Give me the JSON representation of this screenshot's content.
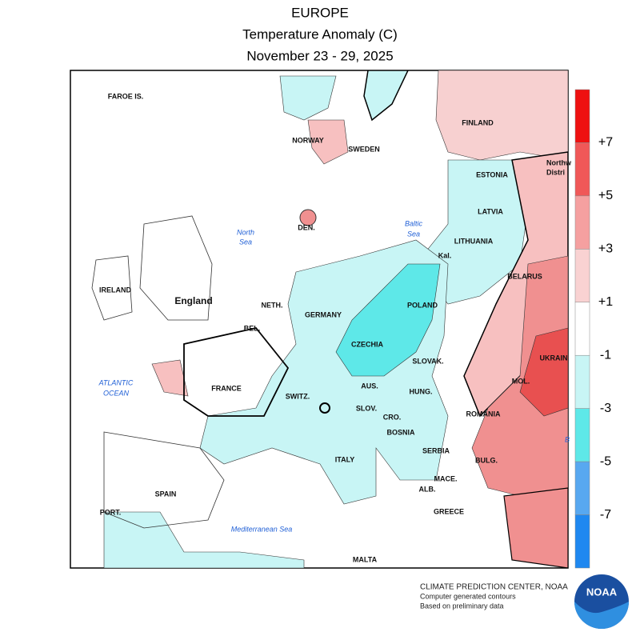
{
  "header": {
    "title": [
      "EUROPE",
      "Temperature Anomaly (C)",
      "November 23 - 29, 2025"
    ]
  },
  "map": {
    "labels": [
      "FAROE IS.",
      "NORWAY",
      "SWEDEN",
      "FINLAND",
      "ESTONIA",
      "Northw",
      "Distri",
      "LATVIA",
      "LITHUANIA",
      "Kal.",
      "BELARUS",
      "DEN.",
      "IRELAND",
      "England",
      "NETH.",
      "GERMANY",
      "POLAND",
      "BEL.",
      "CZECHIA",
      "SLOVAK.",
      "UKRAIN",
      "MOL.",
      "FRANCE",
      "SWITZ.",
      "AUS.",
      "HUNG.",
      "ROMANIA",
      "SLOV.",
      "CRO.",
      "BOSNIA",
      "SERBIA",
      "BULG.",
      "ITALY",
      "MACE.",
      "ALB.",
      "PORT.",
      "SPAIN",
      "GREECE",
      "MALTA"
    ],
    "water_labels": [
      "North",
      "Sea",
      "Baltic",
      "Sea",
      "ATLANTIC",
      "OCEAN",
      "Mediterranean Sea",
      "B"
    ]
  },
  "legend": {
    "colors": [
      "#ee1111",
      "#f05858",
      "#f5a0a0",
      "#f9d2d2",
      "#ffffff",
      "#c8f5f5",
      "#5ee8e8",
      "#58a8f0",
      "#1f88f0"
    ],
    "labels": [
      "+7",
      "+5",
      "+3",
      "+1",
      "-1",
      "-3",
      "-5",
      "-7"
    ]
  },
  "footer": [
    "CLIMATE PREDICTION CENTER, NOAA",
    "Computer generated contours",
    "Based on preliminary data"
  ],
  "logo": "NOAA"
}
